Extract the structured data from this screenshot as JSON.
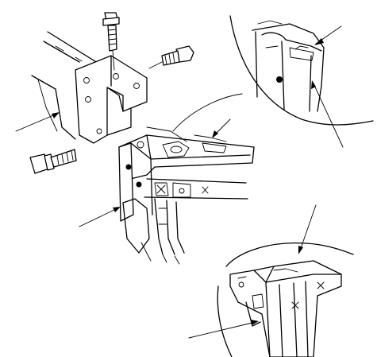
{
  "figure": {
    "callouts": [],
    "colors": {
      "line": "#000000",
      "background": "#ffffff"
    },
    "icons": [
      "bolt-icon",
      "nut-bolt-icon",
      "flange-bolt-icon",
      "weld-spot-icon",
      "leader-arrow-icon"
    ]
  }
}
